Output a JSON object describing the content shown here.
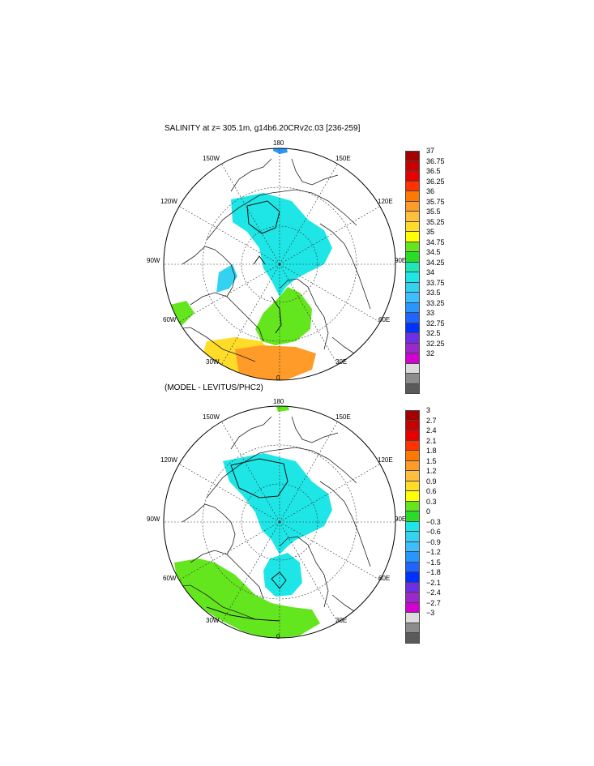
{
  "panels": [
    {
      "title": "SALINITY at z= 305.1m, g14b6.20CRv2c.03 [236-259]",
      "longitude_labels": {
        "n": "180",
        "nw": "150W",
        "ne": "150E",
        "wnw": "120W",
        "ene": "120E",
        "w": "90W",
        "e": "90E",
        "wsw": "60W",
        "ese": "60E",
        "sw": "30W",
        "se": "30E",
        "s": "0"
      },
      "colorbar": {
        "colors": [
          "#a50000",
          "#c80000",
          "#e60000",
          "#ff3200",
          "#ff7800",
          "#ff9b28",
          "#ffbe3c",
          "#ffdc28",
          "#ffff00",
          "#64e61e",
          "#28dc28",
          "#1ee6b4",
          "#1ee6e6",
          "#32d2f0",
          "#3cbeff",
          "#2896ff",
          "#1e64ff",
          "#0032ff",
          "#6e2de6",
          "#9b28c8",
          "#d200d2",
          "#dcdcdc",
          "#8c8c8c",
          "#5a5a5a"
        ],
        "labels": [
          "37",
          "36.75",
          "36.5",
          "36.25",
          "36",
          "35.75",
          "35.5",
          "35.25",
          "35",
          "34.75",
          "34.5",
          "34.25",
          "34",
          "33.75",
          "33.5",
          "33.25",
          "33",
          "32.75",
          "32.5",
          "32.25",
          "32"
        ]
      }
    },
    {
      "title": "(MODEL - LEVITUS/PHC2)",
      "longitude_labels": {
        "n": "180",
        "nw": "150W",
        "ne": "150E",
        "wnw": "120W",
        "ene": "120E",
        "w": "90W",
        "e": "90E",
        "wsw": "60W",
        "ese": "60E",
        "sw": "30W",
        "se": "30E",
        "s": "0"
      },
      "colorbar": {
        "colors": [
          "#a50000",
          "#c80000",
          "#e60000",
          "#ff3200",
          "#ff7800",
          "#ff9b28",
          "#ffbe3c",
          "#ffdc28",
          "#ffff00",
          "#64e61e",
          "#28dc28",
          "#1ee6e6",
          "#32d2f0",
          "#3cbeff",
          "#2896ff",
          "#1e64ff",
          "#0032ff",
          "#6e2de6",
          "#9b28c8",
          "#d200d2",
          "#dcdcdc",
          "#8c8c8c",
          "#5a5a5a"
        ],
        "labels": [
          "3",
          "2.7",
          "2.4",
          "2.1",
          "1.8",
          "1.5",
          "1.2",
          "0.9",
          "0.6",
          "0.3",
          "0",
          "−0.3",
          "−0.6",
          "−0.9",
          "−1.2",
          "−1.5",
          "−1.8",
          "−2.1",
          "−2.4",
          "−2.7",
          "−3"
        ]
      }
    }
  ]
}
